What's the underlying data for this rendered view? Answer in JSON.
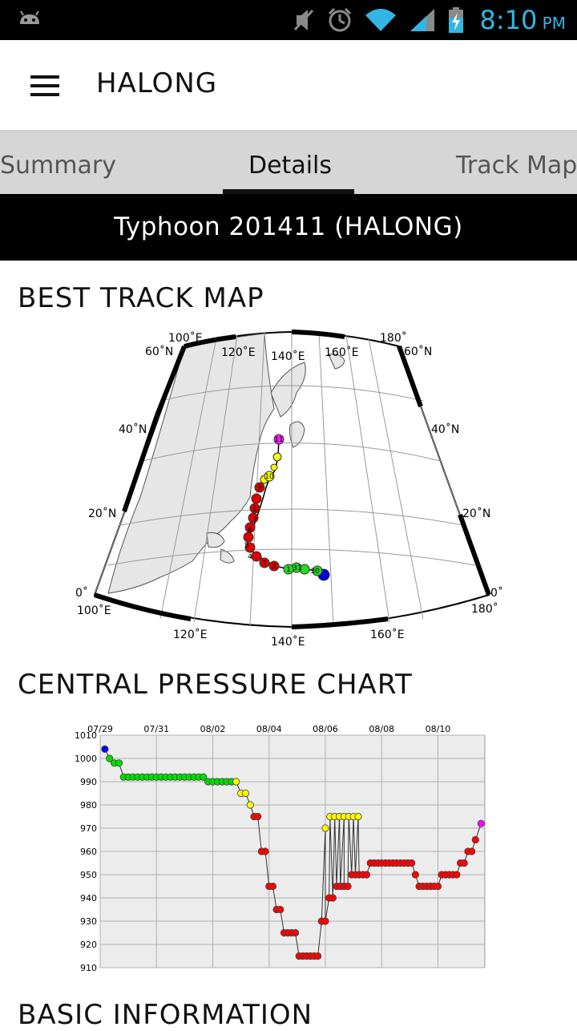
{
  "statusbar": {
    "time": "8:10",
    "ampm": "PM",
    "battery_level": 0.65
  },
  "appbar": {
    "title": "HALONG"
  },
  "tabs": [
    {
      "label": "Summary",
      "active": false
    },
    {
      "label": "Details",
      "active": true
    },
    {
      "label": "Track Map",
      "active": false
    }
  ],
  "banner": {
    "text": "Typhoon 201411 (HALONG)"
  },
  "sections": {
    "track_map": "BEST TRACK MAP",
    "pressure": "CENTRAL PRESSURE CHART",
    "basic": "BASIC INFORMATION"
  },
  "map": {
    "lon_labels": [
      "100˚E",
      "120˚E",
      "140˚E",
      "160˚E",
      "180˚"
    ],
    "lat_labels": [
      "60˚N",
      "40˚N",
      "20˚N",
      "0˚"
    ],
    "track_markers": [
      "30",
      "31",
      "1",
      "2",
      "3",
      "4",
      "5",
      "6",
      "7",
      "8",
      "9",
      "10",
      "11"
    ]
  },
  "chart_data": {
    "type": "scatter",
    "title": "",
    "xlabel": "",
    "ylabel": "",
    "x_ticks": [
      "07/29",
      "07/31",
      "08/02",
      "08/04",
      "08/06",
      "08/08",
      "08/10"
    ],
    "y_ticks": [
      "1010",
      "1000",
      "990",
      "980",
      "970",
      "960",
      "950",
      "940",
      "930",
      "920",
      "910"
    ],
    "ylim": [
      910,
      1010
    ],
    "xlim_days": [
      0,
      13.3
    ],
    "grid": true,
    "series": [
      {
        "color": "#0000ff",
        "x": [
          0.25
        ],
        "y": [
          1004
        ]
      },
      {
        "color": "#00dd00",
        "x": [
          0.5,
          0.75,
          1.0,
          1.25,
          1.5,
          1.75,
          2.0,
          2.25,
          2.5,
          2.75,
          3.0,
          3.25,
          3.5,
          3.75,
          4.0,
          4.25,
          4.5,
          4.75,
          5.0,
          5.25,
          5.5,
          5.75,
          6.0,
          6.25,
          6.5,
          6.75,
          7.0
        ],
        "y": [
          1000,
          998,
          998,
          992,
          992,
          992,
          992,
          992,
          992,
          992,
          992,
          992,
          992,
          992,
          992,
          992,
          992,
          992,
          992,
          992,
          992,
          990,
          990,
          990,
          990,
          990,
          990
        ]
      },
      {
        "color": "#ffff00",
        "x": [
          7.25,
          7.5,
          7.75,
          8.0,
          12.0,
          12.25,
          12.5,
          12.75,
          13.0,
          13.25,
          13.5,
          13.75
        ],
        "y": [
          990,
          985,
          985,
          980,
          970,
          975,
          975,
          975,
          975,
          975,
          975,
          975
        ]
      },
      {
        "color": "#ff0000",
        "x": [
          8.2,
          8.4,
          8.6,
          8.8,
          9.0,
          9.2,
          9.4,
          9.6,
          9.8,
          10.0,
          10.2,
          10.4,
          10.6,
          10.8,
          11.0,
          11.2,
          11.4,
          11.6,
          11.8,
          12.0,
          12.2,
          12.4,
          12.6,
          12.8,
          13.0,
          13.2,
          13.4,
          13.6,
          13.8,
          14.0,
          14.2,
          14.4,
          14.6,
          14.8,
          15.0,
          15.2,
          15.4,
          15.6,
          15.8,
          16.0,
          16.2,
          16.4,
          16.6,
          16.8,
          17.0,
          17.2,
          17.4,
          17.6,
          17.8,
          18.0,
          18.2,
          18.4,
          18.6,
          18.8,
          19.0,
          19.2,
          19.4,
          19.6,
          19.8,
          20.0
        ],
        "y": [
          975,
          975,
          960,
          960,
          945,
          945,
          935,
          935,
          925,
          925,
          925,
          925,
          915,
          915,
          915,
          915,
          915,
          915,
          930,
          930,
          940,
          940,
          945,
          945,
          945,
          945,
          950,
          950,
          950,
          950,
          950,
          955,
          955,
          955,
          955,
          955,
          955,
          955,
          955,
          955,
          955,
          955,
          955,
          950,
          945,
          945,
          945,
          945,
          945,
          945,
          950,
          950,
          950,
          950,
          950,
          955,
          955,
          960,
          960,
          965
        ]
      },
      {
        "color": "#ff00ff",
        "x": [
          20.3
        ],
        "y": [
          972
        ]
      }
    ]
  }
}
